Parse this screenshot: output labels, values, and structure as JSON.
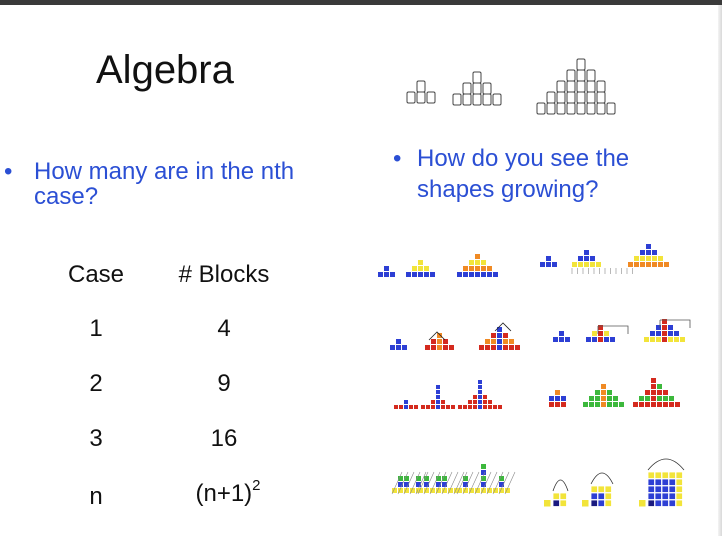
{
  "slide": {
    "title": "Algebra",
    "question_left": "How many are in the nth case?",
    "question_right": "How do you see the shapes growing?",
    "bullet_symbol": "•"
  },
  "table": {
    "headers": [
      "Case",
      "# Blocks"
    ],
    "rows": [
      {
        "case": "1",
        "blocks": "4"
      },
      {
        "case": "2",
        "blocks": "9"
      },
      {
        "case": "3",
        "blocks": "16"
      },
      {
        "case": "n",
        "blocks_base": "(n+1)",
        "blocks_exp": "2"
      }
    ]
  },
  "colors": {
    "text": "#111111",
    "bullet_blue": "#2b4fd4",
    "block_blue": "#2d3fd4",
    "block_yellow": "#f2e43a",
    "block_orange": "#f08a24",
    "block_red": "#d42a1e",
    "block_green": "#3cb83c",
    "block_darkblue": "#1a1a80"
  },
  "figures": {
    "top_row": "block-tower-sketches",
    "row1": "growing-pyramids-yellow-orange",
    "row2": "growing-pyramids-with-arrows",
    "row3": "growing-spikes-red-blue",
    "row4": "growing-squares"
  }
}
